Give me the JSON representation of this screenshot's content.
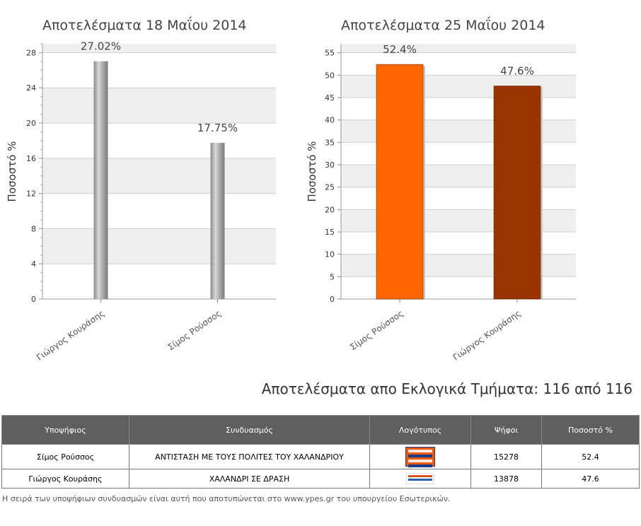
{
  "charts": [
    {
      "title": "Αποτελέσματα 18 Μαΐου 2014",
      "ylabel": "Ποσοστό %",
      "categories": [
        "Γιώργος Κουράσης",
        "Σίμος Ρούσσος"
      ],
      "values": [
        27.02,
        17.75
      ],
      "data_labels": [
        "27.02%",
        "17.75%"
      ],
      "yticks": [
        "0",
        "4",
        "8",
        "12",
        "16",
        "20",
        "24",
        "28"
      ],
      "ylim": [
        0,
        29
      ],
      "colors": [
        "#9a9a9a",
        "#9a9a9a"
      ],
      "style": "thin-cylinder"
    },
    {
      "title": "Αποτελέσματα 25 Μαΐου 2014",
      "ylabel": "Ποσοστό %",
      "categories": [
        "Σίμος Ρούσσος",
        "Γιώργος Κουράσης"
      ],
      "values": [
        52.4,
        47.6
      ],
      "data_labels": [
        "52.4%",
        "47.6%"
      ],
      "yticks": [
        "0",
        "5",
        "10",
        "15",
        "20",
        "25",
        "30",
        "35",
        "40",
        "45",
        "50",
        "55"
      ],
      "ylim": [
        0,
        57
      ],
      "colors": [
        "#ff6600",
        "#993300"
      ],
      "style": "wide-bar"
    }
  ],
  "chart_data": [
    {
      "type": "bar",
      "title": "Αποτελέσματα 18 Μαΐου 2014",
      "categories": [
        "Γιώργος Κουράσης",
        "Σίμος Ρούσσος"
      ],
      "values": [
        27.02,
        17.75
      ],
      "xlabel": "",
      "ylabel": "Ποσοστό %",
      "ylim": [
        0,
        29
      ],
      "grid": true
    },
    {
      "type": "bar",
      "title": "Αποτελέσματα 25 Μαΐου 2014",
      "categories": [
        "Σίμος Ρούσσος",
        "Γιώργος Κουράσης"
      ],
      "values": [
        52.4,
        47.6
      ],
      "xlabel": "",
      "ylabel": "Ποσοστό %",
      "ylim": [
        0,
        57
      ],
      "grid": true
    }
  ],
  "results": {
    "heading": "Αποτελέσματα απο Εκλογικά Τμήματα: 116 από 116",
    "columns": [
      "Υποψήφιος",
      "Συνδυασμός",
      "Λογότυπος",
      "Ψήφοι",
      "Ποσοστό %"
    ],
    "rows": [
      {
        "candidate": "Σίμος Ρούσσος",
        "coalition": "ΑΝΤΙΣΤΑΣΗ ΜΕ ΤΟΥΣ ΠΟΛΙΤΕΣ ΤΟΥ ΧΑΛΑΝΔΡΙΟΥ",
        "logo": "antistasi-logo",
        "votes": "15278",
        "percent": "52.4"
      },
      {
        "candidate": "Γιώργος Κουράσης",
        "coalition": "ΧΑΛΑΝΔΡΙ ΣΕ ΔΡΑΣΗ",
        "logo": "chalandri-se-drasi-logo",
        "votes": "13878",
        "percent": "47.6"
      }
    ]
  },
  "footnote": "Η σειρά των υποψήφιων συνδυασμών είναι αυτή που αποτυπώνεται στο www.ypes.gr του υπουργείου Εσωτερικών."
}
